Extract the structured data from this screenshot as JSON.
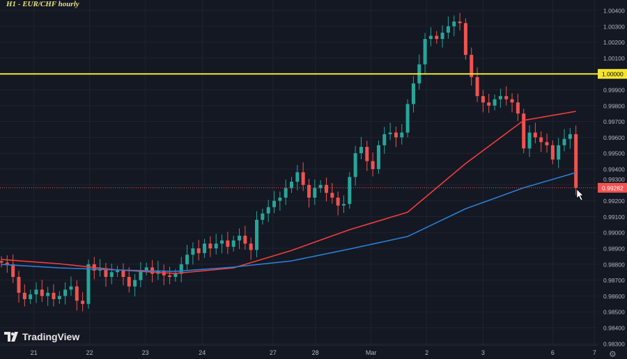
{
  "title": "H1 - EUR/CHF hourly",
  "brand": "TradingView",
  "colors": {
    "background": "#141823",
    "bull": "#26a69a",
    "bear": "#ef5350",
    "ma_fast": "#f23d3d",
    "ma_slow": "#2a7fd6",
    "level": "#f5e531",
    "grid": "#1f2330",
    "axis_text": "#b2b5be"
  },
  "chart_data": {
    "type": "candlestick",
    "title": "H1 - EUR/CHF hourly",
    "ylim": [
      0.983,
      1.0045
    ],
    "grid": true,
    "y_ticks": [
      "1.00400",
      "1.00300",
      "1.00200",
      "1.00100",
      "1.00000",
      "0.99900",
      "0.99800",
      "0.99700",
      "0.99600",
      "0.99500",
      "0.99400",
      "0.99300",
      "0.99200",
      "0.99100",
      "0.99000",
      "0.98900",
      "0.98800",
      "0.98700",
      "0.98600",
      "0.98500",
      "0.98400",
      "0.98300"
    ],
    "x_ticks": [
      {
        "label": "21",
        "bar": 5.6
      },
      {
        "label": "22",
        "bar": 15.2
      },
      {
        "label": "23",
        "bar": 24.8
      },
      {
        "label": "24",
        "bar": 34.6
      },
      {
        "label": "27",
        "bar": 46.8
      },
      {
        "label": "28",
        "bar": 54.1
      },
      {
        "label": "Mar",
        "bar": 63.7
      },
      {
        "label": "2",
        "bar": 73.3
      },
      {
        "label": "3",
        "bar": 83.0
      },
      {
        "label": "6",
        "bar": 95.0
      },
      {
        "label": "7",
        "bar": 102.2
      }
    ],
    "closes": [
      0.9881,
      0.988,
      0.9872,
      0.9862,
      0.9858,
      0.9861,
      0.9864,
      0.986,
      0.9862,
      0.9858,
      0.986,
      0.9864,
      0.9866,
      0.9857,
      0.9855,
      0.988,
      0.9876,
      0.9877,
      0.9872,
      0.9875,
      0.9876,
      0.9872,
      0.9866,
      0.987,
      0.9876,
      0.9878,
      0.9874,
      0.9876,
      0.9873,
      0.9872,
      0.9874,
      0.988,
      0.9886,
      0.989,
      0.9887,
      0.9893,
      0.989,
      0.9893,
      0.9895,
      0.9891,
      0.9895,
      0.9898,
      0.9893,
      0.9889,
      0.9908,
      0.9912,
      0.9916,
      0.992,
      0.9922,
      0.9928,
      0.9932,
      0.9938,
      0.993,
      0.9922,
      0.9928,
      0.993,
      0.9925,
      0.9922,
      0.9917,
      0.9918,
      0.9935,
      0.995,
      0.9954,
      0.9945,
      0.994,
      0.9955,
      0.9962,
      0.9963,
      0.996,
      0.9963,
      0.9981,
      0.9994,
      1.0006,
      1.0022,
      1.0024,
      1.0022,
      1.0026,
      1.003,
      1.0033,
      1.0032,
      1.0012,
      0.9998,
      0.9986,
      0.9982,
      0.998,
      0.9984,
      0.9986,
      0.9984,
      0.9982,
      0.9975,
      0.9953,
      0.9963,
      0.996,
      0.9957,
      0.9955,
      0.9946,
      0.9955,
      0.9959,
      0.9962,
      0.99282
    ],
    "ma_fast": {
      "bars": [
        0,
        10,
        20,
        30,
        40,
        50,
        60,
        70,
        80,
        90,
        99
      ],
      "values": [
        0.9883,
        0.98803,
        0.98764,
        0.98742,
        0.98777,
        0.98887,
        0.99018,
        0.99128,
        0.99435,
        0.99707,
        0.99764
      ]
    },
    "ma_slow": {
      "bars": [
        0,
        10,
        20,
        30,
        40,
        50,
        60,
        70,
        80,
        90,
        99
      ],
      "values": [
        0.98799,
        0.98777,
        0.98764,
        0.98755,
        0.98782,
        0.98821,
        0.98896,
        0.98975,
        0.9915,
        0.99282,
        0.99378
      ]
    },
    "horizontal_level": {
      "value": 1.0,
      "label": "1.00000"
    },
    "last_price": {
      "value": 0.99282,
      "label": "0.99282"
    }
  }
}
